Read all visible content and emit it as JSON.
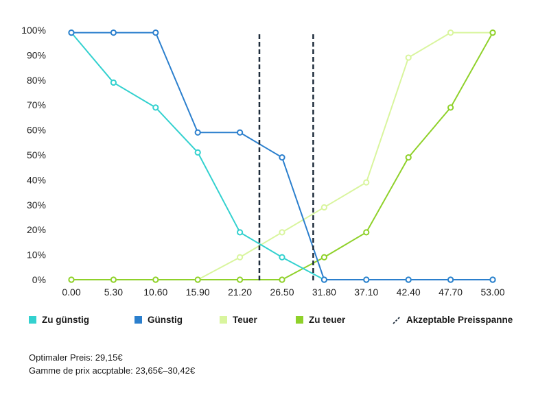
{
  "chart_data": {
    "type": "line",
    "x": [
      "0.00",
      "5.30",
      "10.60",
      "15.90",
      "21.20",
      "26.50",
      "31.80",
      "37.10",
      "42.40",
      "47.70",
      "53.00"
    ],
    "ylim": [
      0,
      100
    ],
    "yticks": [
      "0%",
      "10%",
      "20%",
      "30%",
      "40%",
      "50%",
      "60%",
      "70%",
      "80%",
      "90%",
      "100%"
    ],
    "series": [
      {
        "name": "Zu günstig",
        "color": "#33d1cf",
        "values": [
          99,
          79,
          69,
          51,
          19,
          9,
          0,
          0,
          0,
          0,
          0
        ]
      },
      {
        "name": "Günstig",
        "color": "#2b7fcd",
        "values": [
          99,
          99,
          99,
          59,
          59,
          49,
          0,
          0,
          0,
          0,
          0
        ]
      },
      {
        "name": "Teuer",
        "color": "#d9f59e",
        "values": [
          0,
          0,
          0,
          0,
          9,
          19,
          29,
          39,
          89,
          99,
          99
        ]
      },
      {
        "name": "Zu teuer",
        "color": "#8fd12a",
        "values": [
          0,
          0,
          0,
          0,
          0,
          0,
          9,
          19,
          49,
          69,
          99
        ]
      }
    ],
    "acceptable_range": {
      "label": "Akzeptable Preisspanne",
      "lower": 23.65,
      "upper": 30.42,
      "color": "#1d2b3a"
    }
  },
  "notes": {
    "optimal": "Optimaler Preis: 29,15€",
    "range": "Gamme de prix accptable: 23,65€–30,42€"
  }
}
